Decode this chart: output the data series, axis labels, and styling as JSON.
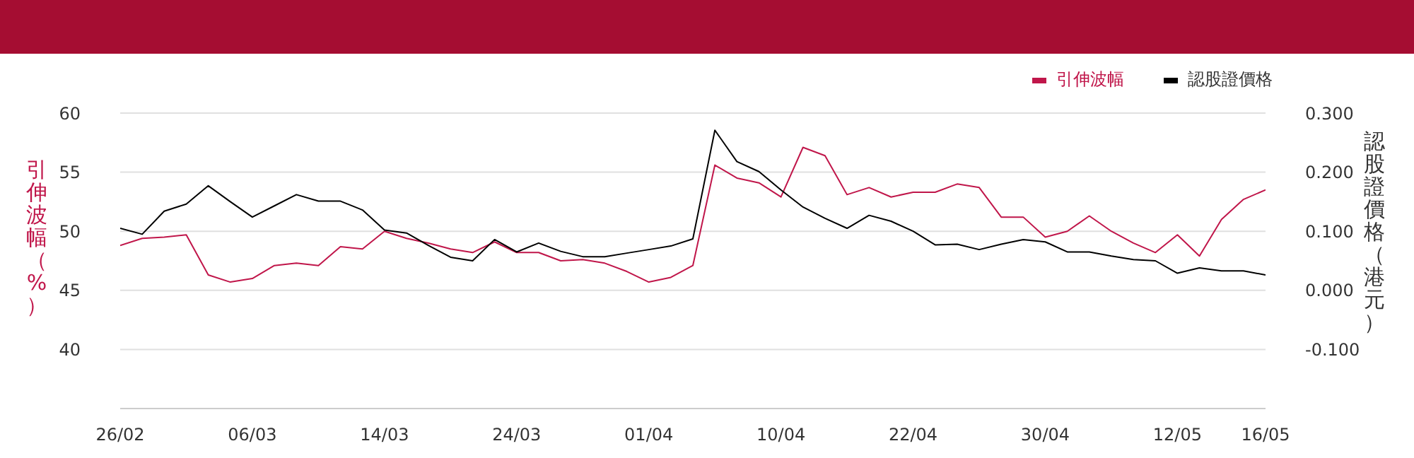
{
  "chart_data": {
    "type": "line",
    "xlabel": null,
    "ylabel": "引伸波幅（%）",
    "y2label": "認股證價格（港元）",
    "categories": [
      "26/02",
      null,
      null,
      null,
      null,
      null,
      "06/03",
      null,
      null,
      null,
      null,
      null,
      "14/03",
      null,
      null,
      null,
      null,
      null,
      "24/03",
      null,
      null,
      null,
      null,
      null,
      "01/04",
      null,
      null,
      null,
      null,
      null,
      "10/04",
      null,
      null,
      null,
      null,
      null,
      "22/04",
      null,
      null,
      null,
      null,
      null,
      "30/04",
      null,
      null,
      null,
      null,
      null,
      "12/05",
      null,
      null,
      null,
      "16/05"
    ],
    "series": [
      {
        "name": "引伸波幅",
        "color": "#c0164a",
        "values": [
          48.8,
          49.4,
          49.5,
          49.7,
          46.3,
          45.7,
          46.0,
          47.1,
          47.3,
          47.1,
          48.7,
          48.5,
          50.0,
          49.4,
          49.0,
          48.5,
          48.2,
          49.1,
          48.2,
          48.2,
          47.5,
          47.6,
          47.3,
          46.6,
          45.7,
          46.1,
          47.1,
          55.6,
          54.5,
          54.1,
          52.9,
          57.1,
          56.4,
          53.1,
          53.7,
          52.9,
          53.3,
          53.3,
          54.0,
          53.7,
          51.2,
          51.2,
          49.5,
          50.0,
          51.3,
          50.0,
          49.0,
          48.2,
          49.7,
          47.9,
          51.0,
          52.7,
          53.5
        ]
      },
      {
        "name": "認股證價格",
        "color": "#000000",
        "axis": "y2",
        "values": [
          0.105,
          0.095,
          0.134,
          0.146,
          0.177,
          0.15,
          0.124,
          0.143,
          0.162,
          0.151,
          0.151,
          0.136,
          0.102,
          0.097,
          0.076,
          0.056,
          0.05,
          0.086,
          0.065,
          0.08,
          0.066,
          0.057,
          0.057,
          0.063,
          0.069,
          0.075,
          0.087,
          0.271,
          0.218,
          0.201,
          0.17,
          0.141,
          0.122,
          0.105,
          0.127,
          0.117,
          0.1,
          0.077,
          0.078,
          0.069,
          0.078,
          0.086,
          0.082,
          0.065,
          0.065,
          0.058,
          0.052,
          0.05,
          0.029,
          0.038,
          0.033,
          0.033,
          0.026
        ]
      }
    ],
    "ylim": [
      35,
      60
    ],
    "yticks": [
      40,
      45,
      50,
      55,
      60
    ],
    "y2lim": [
      -0.2,
      0.3
    ],
    "y2ticks": [
      {
        "value": -0.1,
        "label": "-0.100"
      },
      {
        "value": 0,
        "label": "0.000"
      },
      {
        "value": 0.1,
        "label": "0.100"
      },
      {
        "value": 0.2,
        "label": "0.200"
      },
      {
        "value": 0.3,
        "label": "0.300"
      }
    ],
    "grid": "y",
    "legend": "top right"
  }
}
